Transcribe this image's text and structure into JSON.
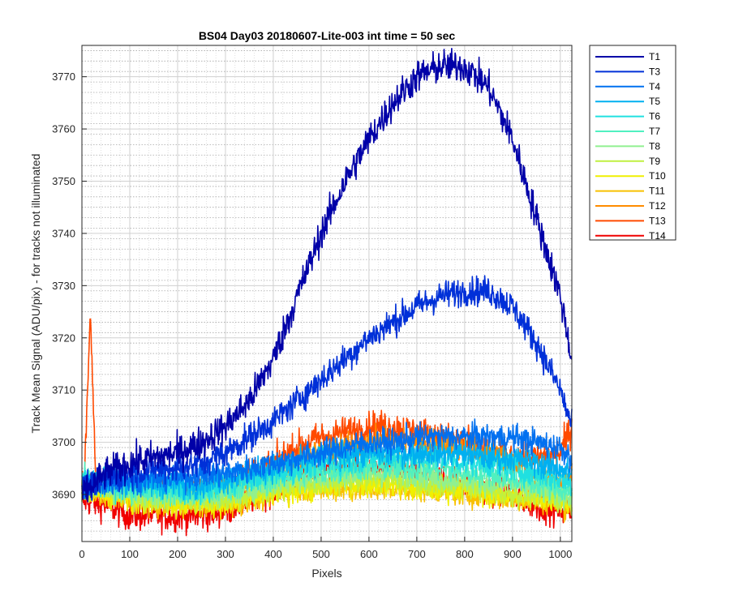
{
  "chart_data": {
    "type": "line",
    "title": "BS04 Day03 20180607-Lite-003 int time = 50 sec",
    "xlabel": "Pixels",
    "ylabel": "Track Mean Signal (ADU/pix) - for tracks not illuminated",
    "xlim": [
      0,
      1024
    ],
    "ylim": [
      3681,
      3776
    ],
    "x_ticks": [
      0,
      100,
      200,
      300,
      400,
      500,
      600,
      700,
      800,
      900,
      1000
    ],
    "y_ticks": [
      3690,
      3700,
      3710,
      3720,
      3730,
      3740,
      3750,
      3760,
      3770
    ],
    "grid": "major and minor",
    "legend_position": "outside-right",
    "x": [
      0,
      50,
      100,
      150,
      200,
      250,
      300,
      350,
      400,
      450,
      500,
      550,
      600,
      650,
      700,
      750,
      800,
      850,
      900,
      950,
      1000,
      1024
    ],
    "series": [
      {
        "name": "T1",
        "color": "#0000a8",
        "noise": 1.6,
        "values": [
          3690,
          3694,
          3696,
          3697,
          3698,
          3700,
          3703,
          3708,
          3716,
          3728,
          3740,
          3750,
          3758,
          3765,
          3770,
          3772,
          3772,
          3768,
          3758,
          3743,
          3728,
          3716
        ]
      },
      {
        "name": "T3",
        "color": "#0030d8",
        "noise": 1.4,
        "values": [
          3691,
          3693,
          3694,
          3695,
          3695,
          3696,
          3698,
          3701,
          3704,
          3708,
          3712,
          3716,
          3720,
          3723,
          3726,
          3728,
          3729,
          3729,
          3726,
          3719,
          3710,
          3703
        ]
      },
      {
        "name": "T4",
        "color": "#0070f0",
        "noise": 1.3,
        "values": [
          3691,
          3692,
          3693,
          3693,
          3693,
          3694,
          3694,
          3695,
          3696,
          3697,
          3698,
          3699,
          3700,
          3700,
          3701,
          3701,
          3701,
          3701,
          3701,
          3700,
          3699,
          3697
        ]
      },
      {
        "name": "T5",
        "color": "#00b0f0",
        "noise": 1.3,
        "values": [
          3692,
          3693,
          3693,
          3692,
          3692,
          3692,
          3693,
          3694,
          3695,
          3696,
          3697,
          3698,
          3698,
          3698,
          3698,
          3698,
          3698,
          3697,
          3697,
          3696,
          3695,
          3694
        ]
      },
      {
        "name": "T6",
        "color": "#20e0e0",
        "noise": 1.3,
        "values": [
          3693,
          3692,
          3692,
          3692,
          3691,
          3691,
          3692,
          3693,
          3694,
          3695,
          3696,
          3696,
          3697,
          3697,
          3697,
          3697,
          3696,
          3696,
          3695,
          3694,
          3693,
          3692
        ]
      },
      {
        "name": "T7",
        "color": "#50f0c0",
        "noise": 1.2,
        "values": [
          3693,
          3692,
          3691,
          3691,
          3690,
          3690,
          3691,
          3692,
          3693,
          3694,
          3694,
          3695,
          3695,
          3695,
          3695,
          3695,
          3694,
          3694,
          3693,
          3692,
          3691,
          3691
        ]
      },
      {
        "name": "T8",
        "color": "#90f090",
        "noise": 1.2,
        "values": [
          3692,
          3691,
          3690,
          3690,
          3690,
          3690,
          3690,
          3691,
          3692,
          3693,
          3693,
          3694,
          3694,
          3694,
          3694,
          3693,
          3693,
          3692,
          3692,
          3691,
          3690,
          3690
        ]
      },
      {
        "name": "T9",
        "color": "#c0f040",
        "noise": 1.2,
        "values": [
          3692,
          3691,
          3690,
          3689,
          3689,
          3689,
          3689,
          3690,
          3691,
          3692,
          3692,
          3693,
          3693,
          3693,
          3692,
          3692,
          3692,
          3691,
          3690,
          3690,
          3689,
          3689
        ]
      },
      {
        "name": "T10",
        "color": "#f0f000",
        "noise": 1.2,
        "values": [
          3691,
          3690,
          3689,
          3689,
          3688,
          3688,
          3688,
          3689,
          3690,
          3691,
          3691,
          3692,
          3692,
          3692,
          3691,
          3691,
          3691,
          3690,
          3690,
          3689,
          3689,
          3688
        ]
      },
      {
        "name": "T11",
        "color": "#f8c000",
        "noise": 1.2,
        "values": [
          3691,
          3690,
          3689,
          3688,
          3688,
          3688,
          3688,
          3689,
          3690,
          3691,
          3691,
          3691,
          3691,
          3691,
          3691,
          3691,
          3690,
          3690,
          3689,
          3689,
          3688,
          3688
        ]
      },
      {
        "name": "T12",
        "color": "#ff8c00",
        "noise": 1.4,
        "values": [
          3692,
          3691,
          3690,
          3690,
          3690,
          3690,
          3691,
          3692,
          3694,
          3696,
          3698,
          3699,
          3700,
          3700,
          3700,
          3700,
          3699,
          3698,
          3696,
          3694,
          3692,
          3694
        ]
      },
      {
        "name": "T13",
        "color": "#ff4a00",
        "noise": 1.5,
        "values": [
          3693,
          3692,
          3691,
          3691,
          3691,
          3691,
          3692,
          3694,
          3696,
          3699,
          3701,
          3702,
          3703,
          3703,
          3702,
          3701,
          3700,
          3698,
          3697,
          3697,
          3698,
          3703
        ]
      },
      {
        "name": "T14",
        "color": "#f00000",
        "noise": 1.5,
        "values": [
          3689,
          3688,
          3686,
          3686,
          3686,
          3686,
          3687,
          3689,
          3691,
          3693,
          3694,
          3695,
          3695,
          3695,
          3694,
          3693,
          3692,
          3691,
          3690,
          3688,
          3687,
          3687
        ]
      }
    ],
    "annotations": [
      {
        "series": "T13",
        "note": "spike near pixel 20",
        "x_range": [
          5,
          30
        ],
        "peak": 3724
      }
    ]
  }
}
